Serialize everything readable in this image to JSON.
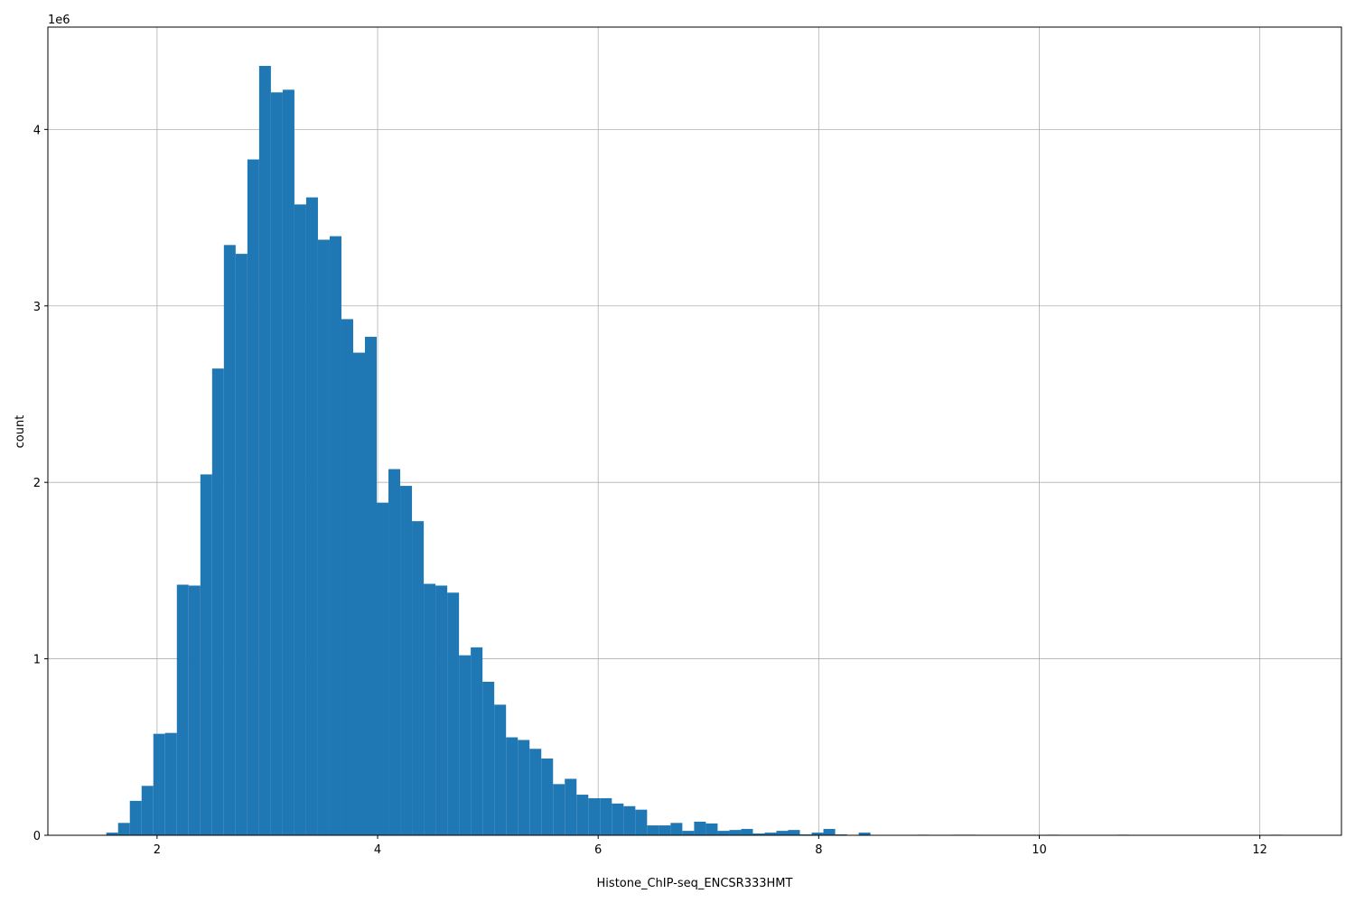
{
  "chart_data": {
    "type": "bar",
    "title": "",
    "xlabel": "Histone_ChIP-seq_ENCSR333HMT",
    "ylabel": "count",
    "y_offset_label": "1e6",
    "xlim": [
      1.01,
      12.74
    ],
    "ylim": [
      0,
      4.58
    ],
    "y_scale_factor": 1000000,
    "grid": true,
    "bar_color": "#1f77b4",
    "x_ticks": [
      "2",
      "4",
      "6",
      "8",
      "10",
      "12"
    ],
    "x_tick_values": [
      2,
      4,
      6,
      8,
      10,
      12
    ],
    "y_ticks": [
      "0",
      "1",
      "2",
      "3",
      "4"
    ],
    "y_tick_values": [
      0,
      1,
      2,
      3,
      4
    ],
    "bin_start": 1.54,
    "bin_width": 0.1066,
    "values": [
      0.015,
      0.07,
      0.195,
      0.28,
      0.575,
      0.58,
      1.42,
      1.415,
      2.045,
      2.645,
      3.345,
      3.295,
      3.83,
      4.36,
      4.21,
      4.225,
      3.575,
      3.615,
      3.375,
      3.395,
      2.925,
      2.735,
      2.825,
      1.885,
      2.075,
      1.98,
      1.78,
      1.425,
      1.415,
      1.375,
      1.02,
      1.065,
      0.87,
      0.74,
      0.555,
      0.54,
      0.49,
      0.435,
      0.29,
      0.32,
      0.23,
      0.21,
      0.21,
      0.18,
      0.165,
      0.145,
      0.056,
      0.056,
      0.07,
      0.025,
      0.077,
      0.067,
      0.025,
      0.03,
      0.036,
      0.01,
      0.015,
      0.025,
      0.03,
      0.005,
      0.015,
      0.036,
      0.005,
      0,
      0.015,
      0,
      0,
      0,
      0,
      0.003,
      0,
      0,
      0.003,
      0.003,
      0,
      0,
      0,
      0,
      0,
      0,
      0.003,
      0,
      0,
      0,
      0,
      0,
      0.003,
      0,
      0,
      0,
      0,
      0,
      0,
      0,
      0,
      0,
      0,
      0,
      0,
      0.003
    ]
  }
}
